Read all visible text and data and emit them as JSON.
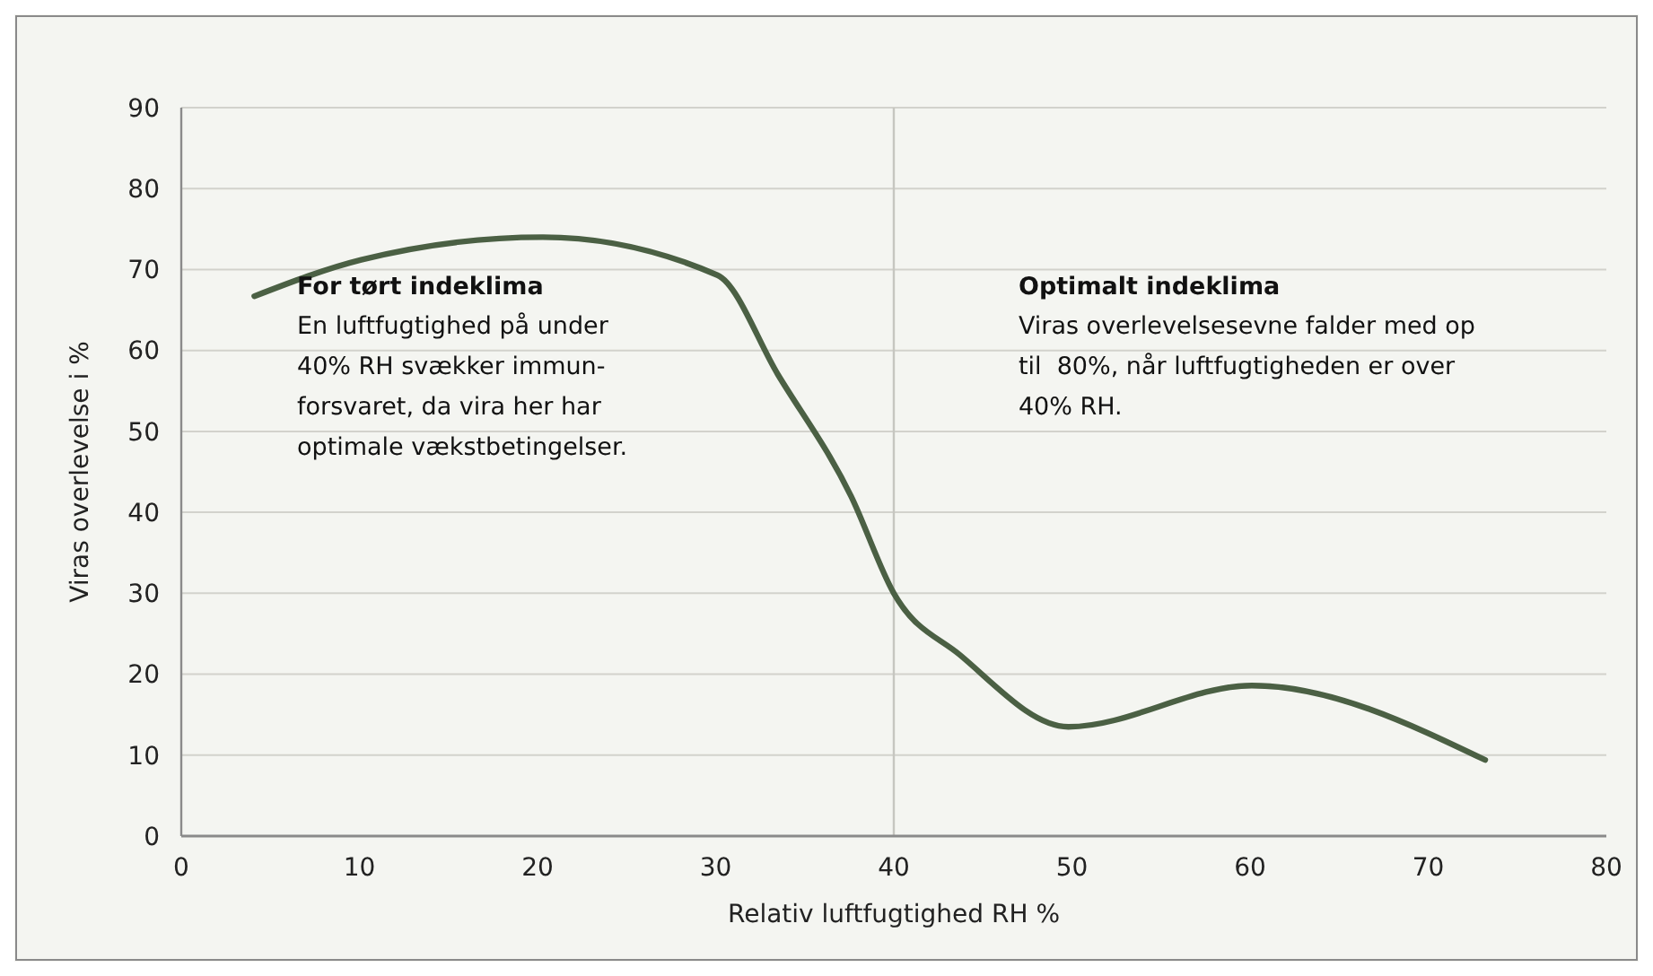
{
  "chart_data": {
    "type": "line",
    "xlabel": "Relativ luftfugtighed RH %",
    "ylabel": "Viras overlevelse i %",
    "x": [
      4.1,
      10.1,
      20.3,
      30.1,
      33.5,
      37.6,
      40,
      43.7,
      49.8,
      60.1,
      73.2
    ],
    "series": [
      {
        "color": "#4b6044",
        "values": [
          66.7,
          71.2,
          74,
          69.3,
          57,
          42,
          30,
          22.4,
          13.5,
          18.6,
          9.4
        ]
      }
    ],
    "xlim": [
      0,
      80
    ],
    "xticks": [
      0,
      10,
      20,
      30,
      40,
      50,
      60,
      70,
      80
    ],
    "ylim": [
      0,
      90
    ],
    "yticks": [
      0,
      10,
      20,
      30,
      40,
      50,
      60,
      70,
      80,
      90
    ],
    "grid": "y",
    "marker": "none",
    "line_style": "solid",
    "ref_lines": [
      {
        "axis": "x",
        "value": 40,
        "color": "#c6c6c0"
      }
    ],
    "annotations": [
      "For tørt indeklima",
      "En luftfugtighed på under\n40% RH svækker immun-\nforsvaret, da vira her har\noptimale vækstbetingelser.",
      "Optimalt indeklima",
      "Viras overlevelsesevne falder med op\ntil  80%, når luftfugtigheden er over\n40% RH."
    ]
  }
}
